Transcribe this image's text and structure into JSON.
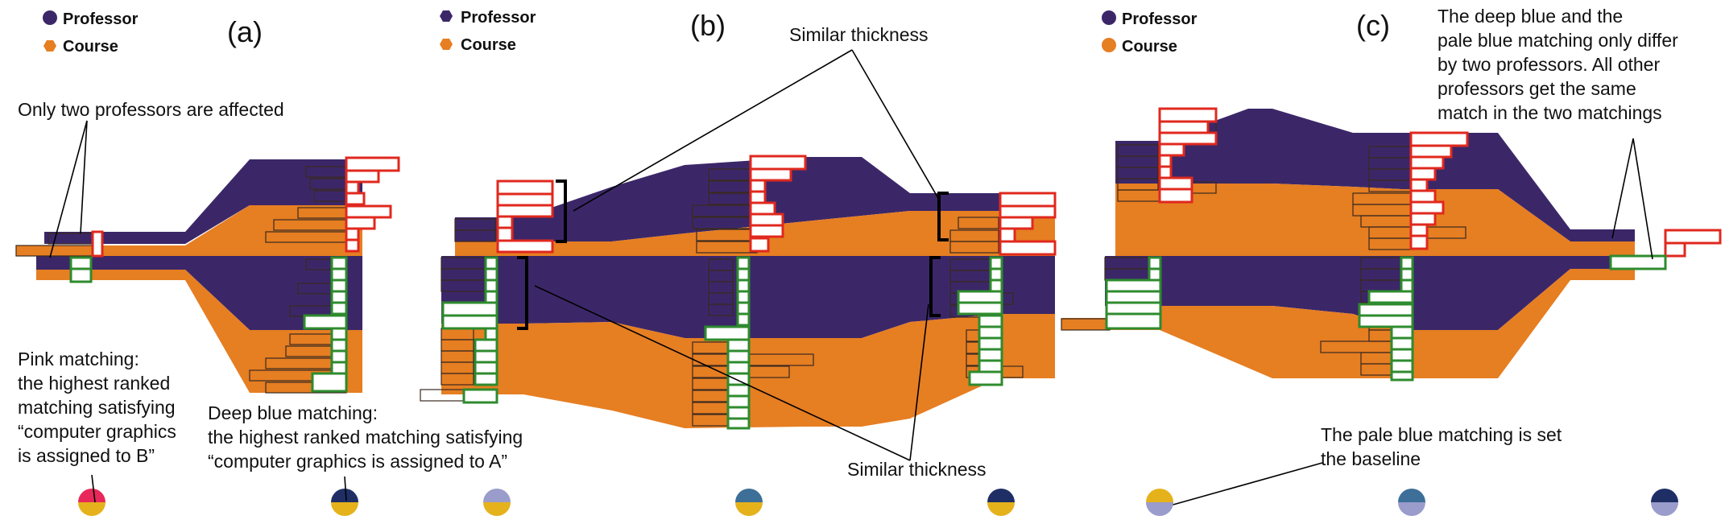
{
  "legend": [
    {
      "label": "Professor",
      "color": "#3b2768"
    },
    {
      "label": "Course",
      "color": "#e67e22"
    }
  ],
  "panels": [
    {
      "label": "(a)"
    },
    {
      "label": "(b)"
    },
    {
      "label": "(c)"
    }
  ],
  "annotations": {
    "only_two": "Only two professors are affected",
    "pink": [
      "Pink matching:",
      "the highest ranked",
      "matching satisfying",
      "“computer graphics",
      "is assigned to B”"
    ],
    "deep_blue": [
      "Deep blue matching:",
      "the highest ranked matching satisfying",
      "“computer graphics is assigned to A”"
    ],
    "similar_top": "Similar thickness",
    "similar_bottom": "Similar thickness",
    "pale_baseline": [
      "The pale blue matching is set",
      "the baseline"
    ],
    "differ": [
      "The deep blue and the",
      "pale blue matching only differ",
      "by two professors. All other",
      "professors get the same",
      "match in the two matchings"
    ]
  },
  "colors": {
    "professor": "#3b2768",
    "course": "#e67e22",
    "pink": "#e8285a",
    "deep_blue": "#1f2f66",
    "pale_blue": "#9a9ccc",
    "mid_blue": "#3d6f98",
    "gold": "#e5b21c",
    "red_box": "#e0281e",
    "green_box": "#2e8b2e"
  },
  "matching_glyphs": [
    {
      "name": "pink",
      "top": "#e8285a",
      "bottom": "#e5b21c"
    },
    {
      "name": "deep-blue",
      "top": "#1f2f66",
      "bottom": "#e5b21c"
    },
    {
      "name": "pale-blue",
      "top": "#9a9ccc",
      "bottom": "#e5b21c"
    },
    {
      "name": "mid-blue",
      "top": "#3d6f98",
      "bottom": "#e5b21c"
    },
    {
      "name": "deep-blue",
      "top": "#1f2f66",
      "bottom": "#e5b21c"
    },
    {
      "name": "pale-blue-baseline",
      "top": "#e5b21c",
      "bottom": "#9a9ccc"
    },
    {
      "name": "mid-blue",
      "top": "#3d6f98",
      "bottom": "#9a9ccc"
    },
    {
      "name": "deep-blue",
      "top": "#1f2f66",
      "bottom": "#9a9ccc"
    }
  ]
}
